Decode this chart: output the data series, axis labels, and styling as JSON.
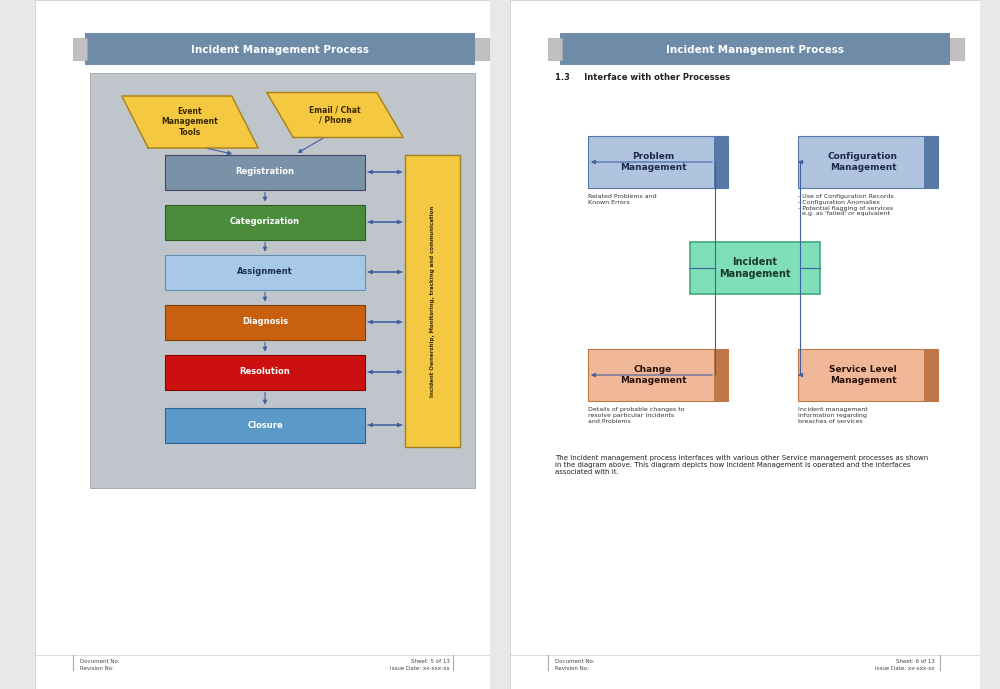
{
  "page_bg": "#e8e8e8",
  "page1": {
    "title": "Incident Management Process",
    "title_bg": "#6e8ca8",
    "title_fg": "#ffffff",
    "diagram_bg": "#c0c5cc",
    "para1_text": "Event\nManagement\nTools",
    "para1_color": "#f5c842",
    "para1_border": "#a08020",
    "para2_text": "Email / Chat\n/ Phone",
    "para2_color": "#f5c842",
    "para2_border": "#a08020",
    "boxes": [
      {
        "label": "Registration",
        "color": "#7a92a8",
        "border": "#444466",
        "text_color": "#ffffff"
      },
      {
        "label": "Categorization",
        "color": "#4a8c3c",
        "border": "#2a5c20",
        "text_color": "#ffffff"
      },
      {
        "label": "Assignment",
        "color": "#a8c8e8",
        "border": "#6090b8",
        "text_color": "#1c3050"
      },
      {
        "label": "Diagnosis",
        "color": "#c86010",
        "border": "#804000",
        "text_color": "#ffffff"
      },
      {
        "label": "Resolution",
        "color": "#cc1010",
        "border": "#880000",
        "text_color": "#ffffff"
      },
      {
        "label": "Closure",
        "color": "#5a99c8",
        "border": "#3060a0",
        "text_color": "#ffffff"
      }
    ],
    "sidebar_text": "Incident Ownership, Monitoring, tracking and communication",
    "sidebar_color": "#f5c842",
    "sidebar_border": "#a08020",
    "arrow_color": "#4060a0",
    "footer_left": "Document No:\nRevision No:",
    "footer_right": "Sheet: 5 of 13\nIssue Date: xx-xxx-xx"
  },
  "page2": {
    "title": "Incident Management Process",
    "title_bg": "#6e8ca8",
    "title_fg": "#ffffff",
    "section_heading": "1.3     Interface with other Processes",
    "center_box": {
      "label": "Incident\nManagement",
      "color": "#80deb8",
      "border": "#40a880",
      "text_color": "#1a3a2a"
    },
    "boxes": [
      {
        "label": "Problem\nManagement",
        "color": "#b0c4e0",
        "border": "#5878a8",
        "text_color": "#1a2a4a",
        "note": "Related Problems and\nKnown Errors"
      },
      {
        "label": "Configuration\nManagement",
        "color": "#b0c4e0",
        "border": "#5878a8",
        "text_color": "#1a2a4a",
        "note": "- Use of Configuration Records\n- Configuration Anomalies\n- Potential flagging of services\n  e.g. as 'failed' or equivalent"
      },
      {
        "label": "Change\nManagement",
        "color": "#f0b898",
        "border": "#c07848",
        "text_color": "#2a1008",
        "note": "Details of probable changes to\nresolve particular Incidents\nand Problems"
      },
      {
        "label": "Service Level\nManagement",
        "color": "#f0b898",
        "border": "#c07848",
        "text_color": "#2a1008",
        "note": "Incident management\ninformation regarding\nbreaches of services"
      }
    ],
    "paragraph": "The Incident management process interfaces with various other Service management processes as shown\nin the diagram above. This diagram depicts how Incident Management is operated and the interfaces\nassociated with it.",
    "arrow_color": "#4060a0",
    "footer_left": "Document No:\nRevision No:",
    "footer_right": "Sheet: 6 of 13\nIssue Date: xx-xxx-xx"
  }
}
